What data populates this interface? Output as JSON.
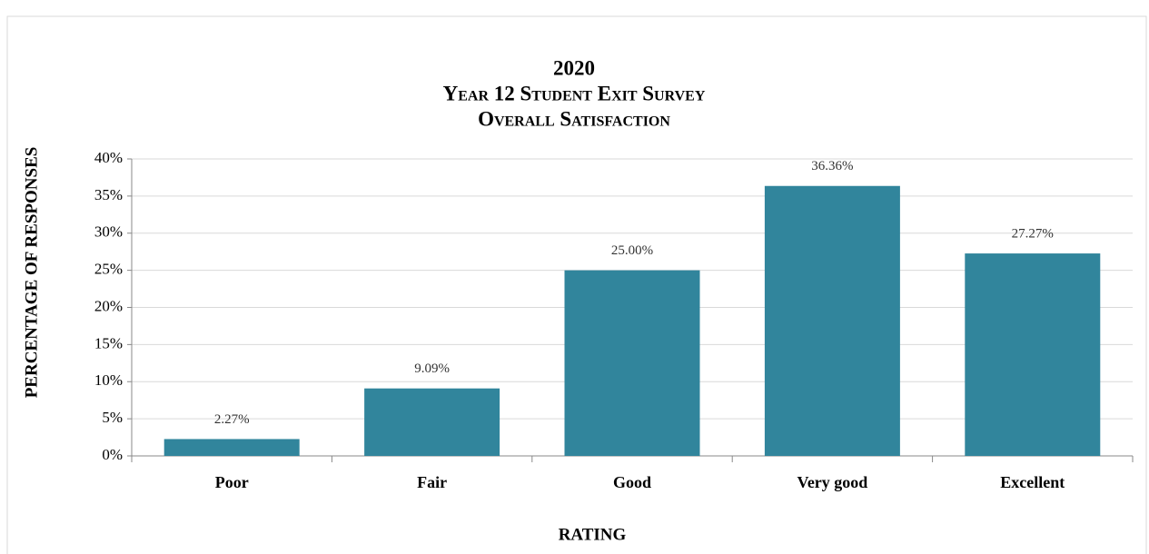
{
  "chart_data": {
    "type": "bar",
    "title": [
      "2020",
      "Year 12 Student Exit Survey",
      "Overall Satisfaction"
    ],
    "xlabel": "RATING",
    "ylabel": "PERCENTAGE OF RESPONSES",
    "categories": [
      "Poor",
      "Fair",
      "Good",
      "Very good",
      "Excellent"
    ],
    "values": [
      2.27,
      9.09,
      25.0,
      36.36,
      27.27
    ],
    "value_labels": [
      "2.27%",
      "9.09%",
      "25.00%",
      "36.36%",
      "27.27%"
    ],
    "color": "#31859c",
    "ylim": [
      0,
      40
    ],
    "yticks": [
      {
        "value": 0,
        "label": "0%"
      },
      {
        "value": 5,
        "label": "5%"
      },
      {
        "value": 10,
        "label": "10%"
      },
      {
        "value": 15,
        "label": "15%"
      },
      {
        "value": 20,
        "label": "20%"
      },
      {
        "value": 25,
        "label": "25%"
      },
      {
        "value": 30,
        "label": "30%"
      },
      {
        "value": 35,
        "label": "35%"
      },
      {
        "value": 40,
        "label": "40%"
      }
    ],
    "grid": true
  }
}
